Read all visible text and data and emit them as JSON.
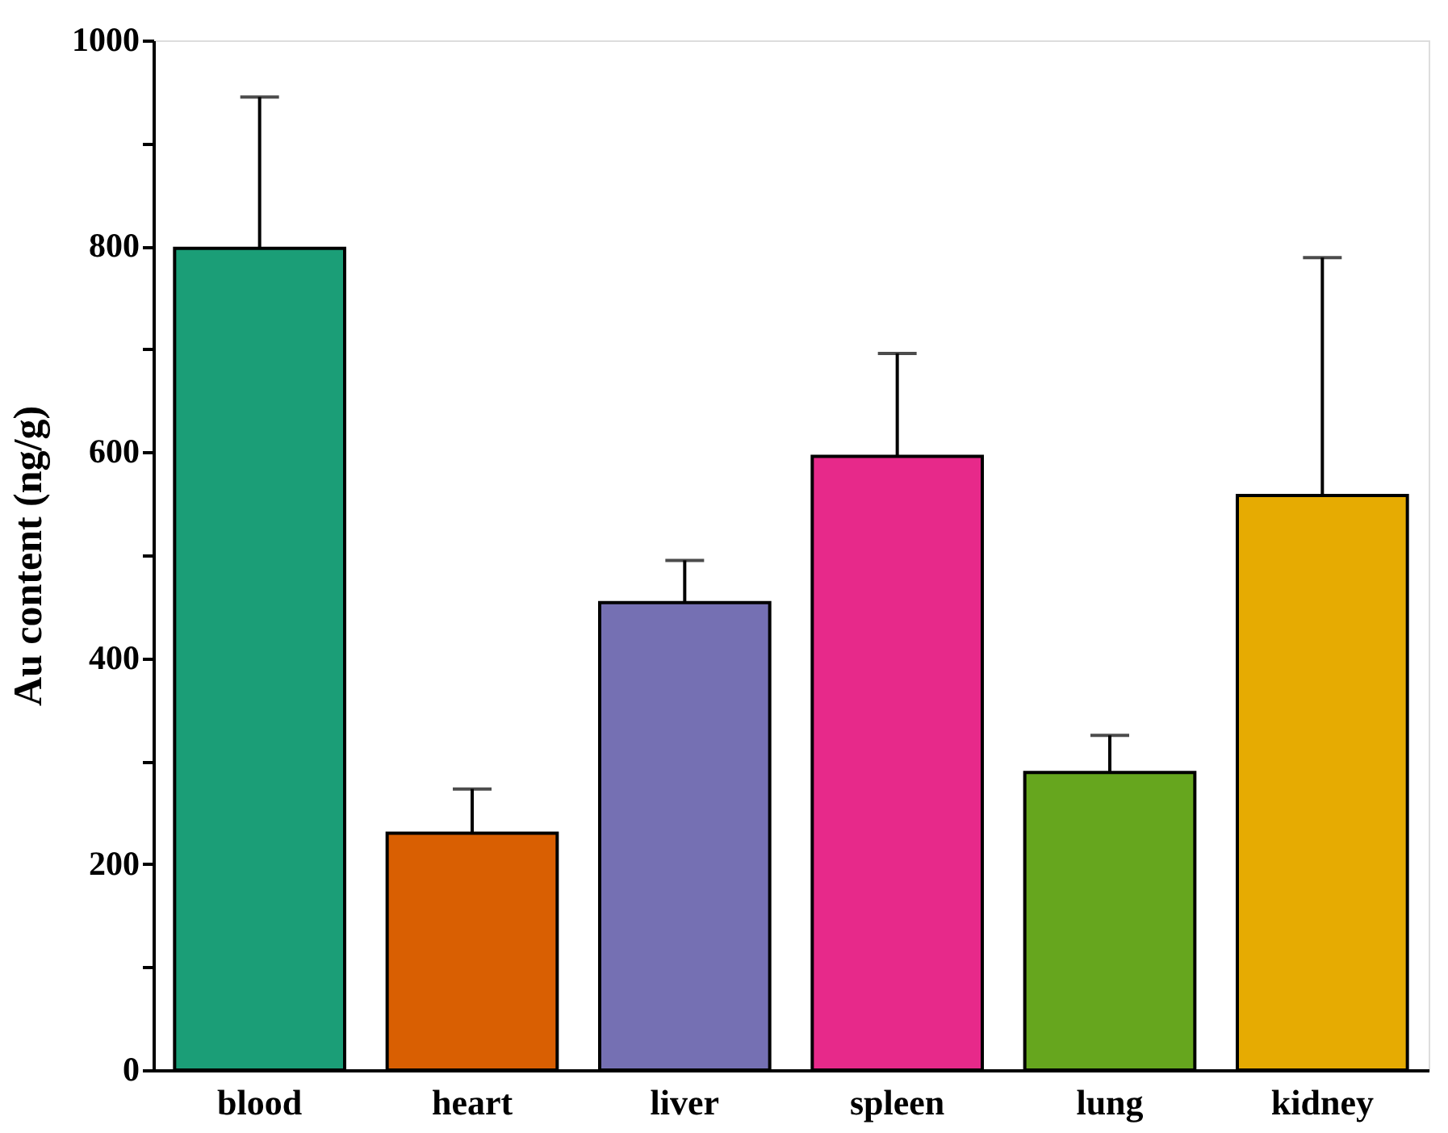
{
  "chart_data": {
    "type": "bar",
    "ylabel": "Au content (ng/g)",
    "categories": [
      "blood",
      "heart",
      "liver",
      "spleen",
      "lung",
      "kidney"
    ],
    "values": [
      798,
      230,
      454,
      596,
      289,
      558
    ],
    "colors": [
      "#1b9e77",
      "#d95f02",
      "#7570b3",
      "#e7298a",
      "#66a61e",
      "#e6ab02"
    ],
    "errors": [
      [
        798,
        945
      ],
      [
        230,
        273
      ],
      [
        454,
        495
      ],
      [
        596,
        696
      ],
      [
        289,
        325
      ],
      [
        558,
        789
      ]
    ],
    "ylim": [
      0,
      1000
    ],
    "yticks": [
      0,
      {
        "value": 100,
        "label": null
      },
      200,
      {
        "value": 300,
        "label": null
      },
      400,
      {
        "value": 500,
        "label": null
      },
      600,
      {
        "value": 700,
        "label": null
      },
      800,
      {
        "value": 900,
        "label": null
      },
      1000
    ],
    "grid": false
  }
}
